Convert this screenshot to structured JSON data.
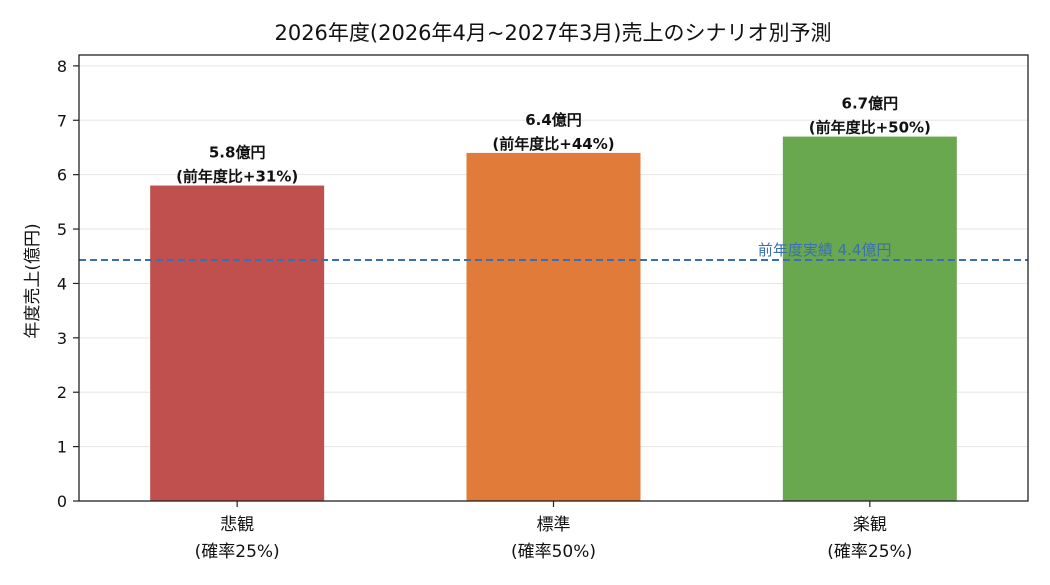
{
  "chart_data": {
    "type": "bar",
    "title": "2026年度(2026年4月~2027年3月)売上のシナリオ別予測",
    "xlabel": "",
    "ylabel": "年度売上(億円)",
    "ylim": [
      0,
      8.2
    ],
    "yticks": [
      "0",
      "1",
      "2",
      "3",
      "4",
      "5",
      "6",
      "7",
      "8"
    ],
    "grid": "horizontal",
    "categories": [
      {
        "name": "悲観",
        "sub": "(確率25%)"
      },
      {
        "name": "標準",
        "sub": "(確率50%)"
      },
      {
        "name": "楽観",
        "sub": "(確率25%)"
      }
    ],
    "values": [
      5.8,
      6.4,
      6.7
    ],
    "colors": [
      "#c0504d",
      "#e07b39",
      "#6aa84f"
    ],
    "data_labels": [
      {
        "value": "5.8億円",
        "change": "(前年度比+31%)"
      },
      {
        "value": "6.4億円",
        "change": "(前年度比+44%)"
      },
      {
        "value": "6.7億円",
        "change": "(前年度比+50%)"
      }
    ],
    "reference_line": {
      "value": 4.43,
      "label": "前年度実績 4.4億円",
      "color": "#3a6fb0",
      "style": "dashed"
    }
  }
}
